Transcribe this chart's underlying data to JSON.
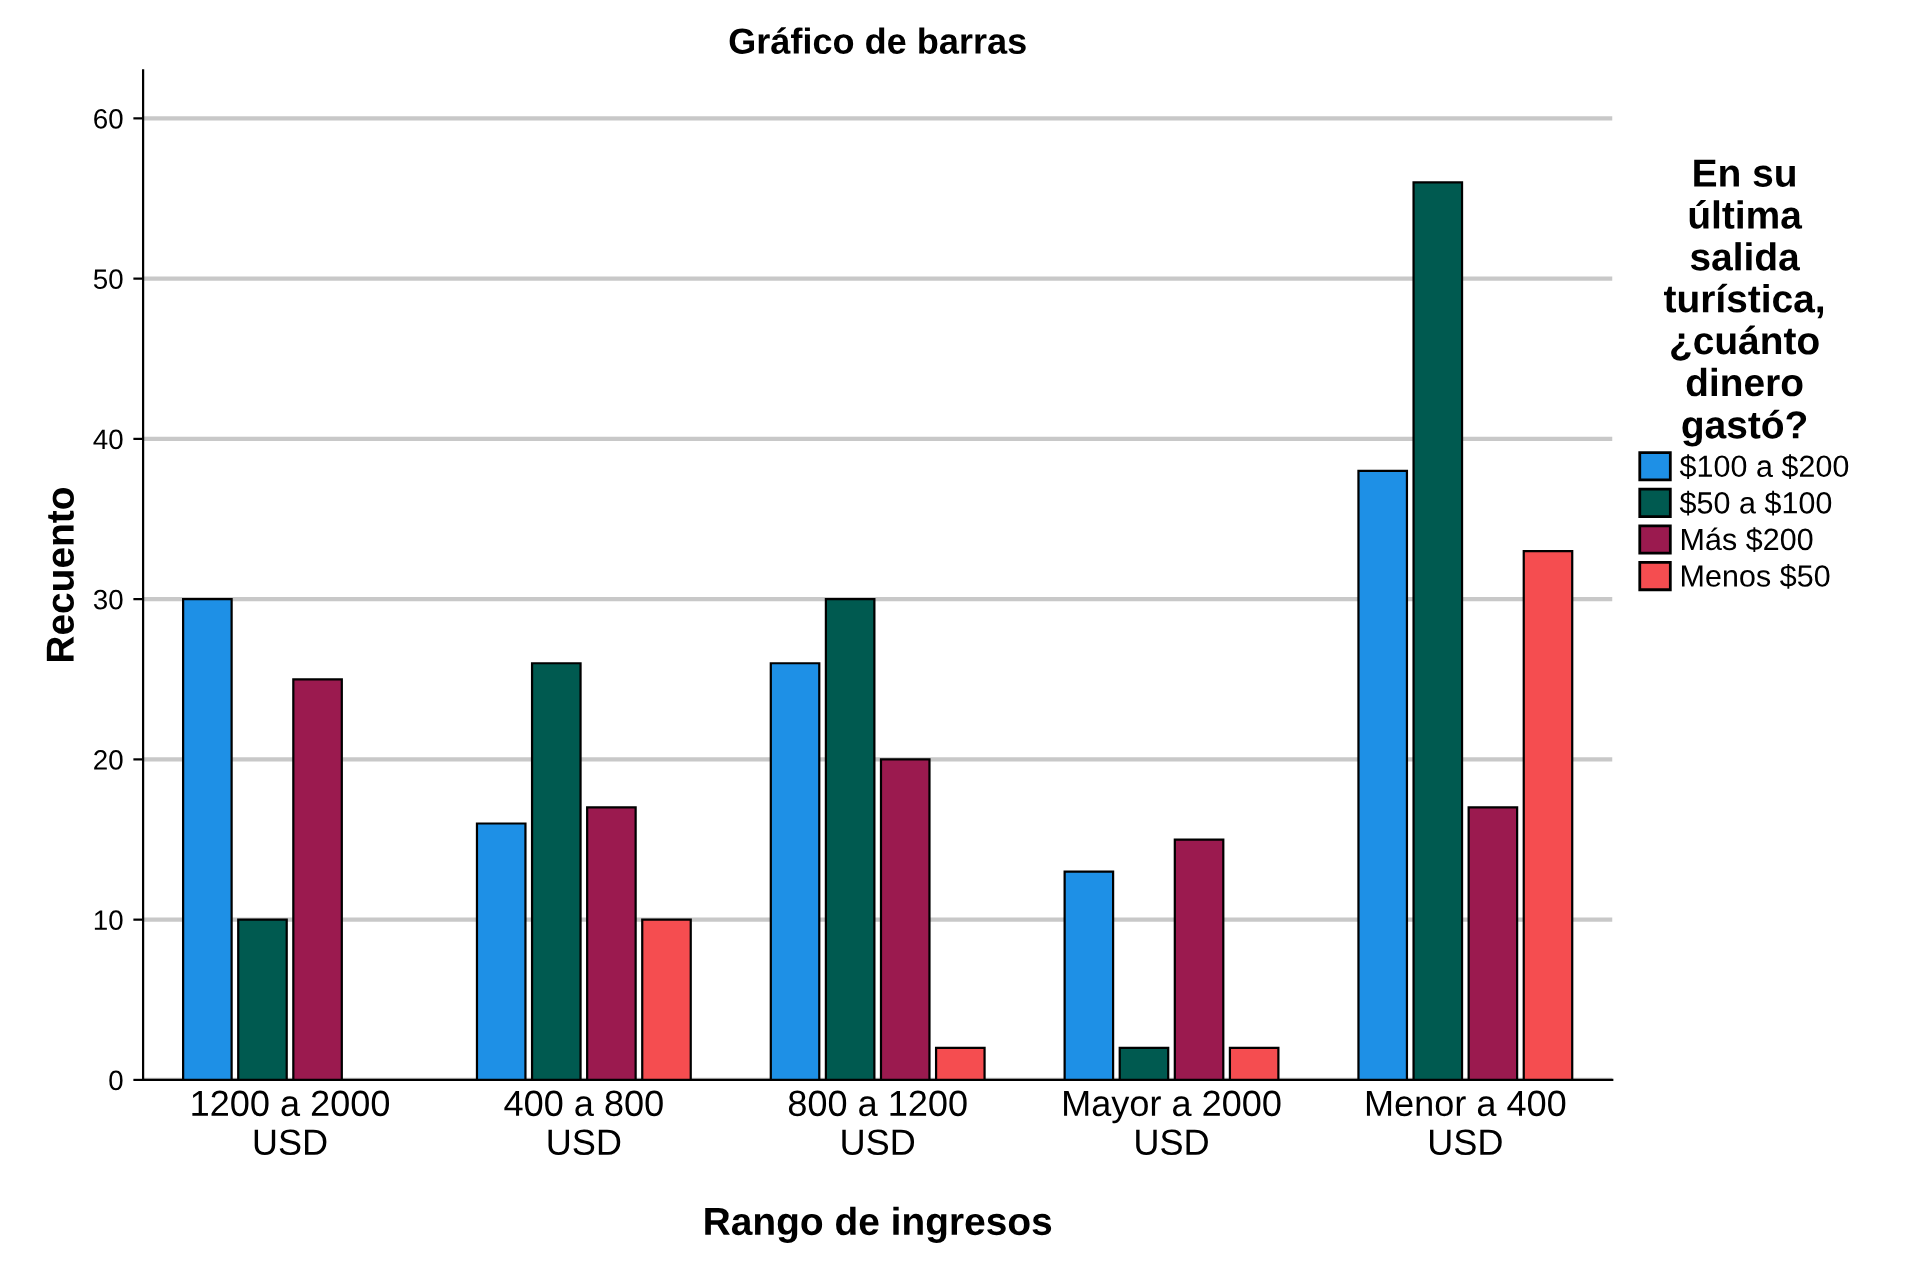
{
  "chart_data": {
    "type": "bar",
    "title": "Gráfico de barras",
    "xlabel": "Rango de ingresos",
    "ylabel": "Recuento",
    "legend_title": "En su\núltima\nsalida\nturística,\n¿cuánto\ndinero\ngastó?",
    "categories": [
      "1200 a 2000\nUSD",
      "400 a 800\nUSD",
      "800 a 1200\nUSD",
      "Mayor a 2000\nUSD",
      "Menor a 400\nUSD"
    ],
    "series": [
      {
        "name": "$100 a $200",
        "color": "#1e90e6",
        "values": [
          30,
          16,
          26,
          13,
          38
        ]
      },
      {
        "name": "$50 a $100",
        "color": "#005a50",
        "values": [
          10,
          26,
          30,
          2,
          56
        ]
      },
      {
        "name": "Más $200",
        "color": "#9b1a4f",
        "values": [
          25,
          17,
          20,
          15,
          17
        ]
      },
      {
        "name": "Menos $50",
        "color": "#f54d50",
        "values": [
          null,
          10,
          2,
          2,
          33
        ]
      }
    ],
    "ylim": [
      0,
      63
    ],
    "yticks": [
      0,
      10,
      20,
      30,
      40,
      50,
      60
    ],
    "grid": "y",
    "legend": "right"
  }
}
